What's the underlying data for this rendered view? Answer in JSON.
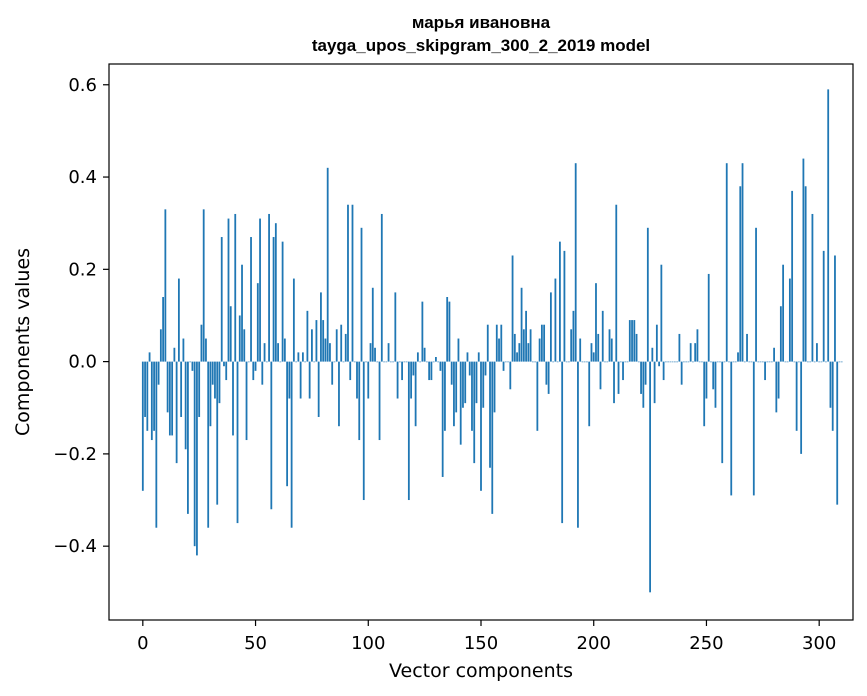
{
  "chart_data": {
    "type": "bar",
    "title_line1": "марья ивановна",
    "title_line2": "tayga_upos_skipgram_300_2_2019 model",
    "xlabel": "Vector components",
    "ylabel": "Components values",
    "xlim": [
      -15,
      315
    ],
    "ylim": [
      -0.56,
      0.645
    ],
    "xticks": [
      0,
      50,
      100,
      150,
      200,
      250,
      300
    ],
    "xtick_labels": [
      "0",
      "50",
      "100",
      "150",
      "200",
      "250",
      "300"
    ],
    "yticks": [
      -0.4,
      -0.2,
      0.0,
      0.2,
      0.4,
      0.6
    ],
    "ytick_labels": [
      "−0.4",
      "−0.2",
      "0.0",
      "0.2",
      "0.4",
      "0.6"
    ],
    "bar_color": "#1f77b4",
    "values": [
      -0.28,
      -0.12,
      -0.15,
      0.02,
      -0.17,
      -0.15,
      -0.36,
      -0.05,
      0.07,
      0.14,
      0.33,
      -0.11,
      -0.16,
      -0.16,
      0.03,
      -0.22,
      0.18,
      -0.12,
      0.05,
      -0.19,
      -0.33,
      0.0,
      -0.02,
      -0.4,
      -0.42,
      -0.12,
      0.08,
      0.33,
      0.05,
      -0.36,
      -0.14,
      -0.05,
      -0.08,
      -0.31,
      -0.09,
      0.27,
      -0.01,
      -0.04,
      0.31,
      0.12,
      -0.16,
      0.32,
      -0.35,
      0.1,
      0.21,
      0.07,
      -0.17,
      0.0,
      0.27,
      -0.04,
      -0.02,
      0.17,
      0.31,
      -0.05,
      0.04,
      0.0,
      0.32,
      -0.32,
      0.27,
      0.3,
      0.04,
      0.0,
      0.26,
      0.05,
      -0.27,
      -0.08,
      -0.36,
      0.18,
      0.0,
      0.02,
      -0.08,
      0.02,
      0.0,
      0.11,
      -0.08,
      0.07,
      0.0,
      0.09,
      -0.12,
      0.15,
      0.09,
      0.05,
      0.42,
      0.04,
      -0.05,
      0.0,
      0.07,
      -0.14,
      0.08,
      0.0,
      0.06,
      0.34,
      -0.04,
      0.34,
      0.0,
      -0.08,
      -0.17,
      0.29,
      -0.3,
      0.0,
      -0.08,
      0.04,
      0.16,
      0.03,
      0.0,
      -0.17,
      0.32,
      0.0,
      0.0,
      0.04,
      0.0,
      0.0,
      0.15,
      -0.08,
      0.0,
      -0.04,
      0.0,
      0.0,
      -0.3,
      -0.08,
      -0.03,
      -0.14,
      0.02,
      0.0,
      0.13,
      0.03,
      0.0,
      -0.04,
      -0.04,
      0.0,
      0.01,
      0.0,
      -0.02,
      -0.25,
      -0.15,
      0.14,
      0.13,
      -0.05,
      -0.14,
      -0.11,
      0.05,
      -0.18,
      -0.1,
      -0.09,
      0.02,
      -0.03,
      -0.15,
      -0.22,
      -0.09,
      0.02,
      -0.28,
      -0.1,
      -0.03,
      0.08,
      -0.23,
      -0.33,
      -0.11,
      0.08,
      0.05,
      0.08,
      -0.02,
      0.0,
      0.0,
      -0.06,
      0.23,
      0.06,
      0.02,
      0.04,
      0.16,
      0.07,
      0.11,
      0.04,
      0.07,
      0.0,
      0.0,
      -0.15,
      0.05,
      0.08,
      0.08,
      -0.05,
      -0.07,
      0.15,
      0.0,
      0.18,
      0.0,
      0.26,
      -0.35,
      0.24,
      0.0,
      0.0,
      0.07,
      0.11,
      0.43,
      -0.36,
      0.05,
      0.0,
      0.0,
      0.0,
      -0.14,
      0.04,
      0.02,
      0.17,
      0.06,
      -0.06,
      0.11,
      0.0,
      0.0,
      0.07,
      0.05,
      -0.09,
      0.34,
      -0.07,
      0.0,
      -0.04,
      0.0,
      0.0,
      0.09,
      0.09,
      0.09,
      0.06,
      0.0,
      -0.07,
      -0.1,
      -0.05,
      0.29,
      -0.5,
      0.03,
      -0.09,
      0.08,
      -0.01,
      0.21,
      -0.04,
      0.0,
      0.0,
      0.0,
      0.0,
      0.0,
      0.0,
      0.06,
      -0.05,
      0.0,
      0.0,
      0.0,
      0.04,
      0.0,
      0.04,
      0.07,
      0.0,
      0.0,
      -0.14,
      -0.08,
      0.19,
      0.0,
      -0.06,
      -0.1,
      0.0,
      0.0,
      -0.22,
      0.0,
      0.43,
      0.0,
      -0.29,
      0.0,
      0.0,
      0.02,
      0.38,
      0.43,
      0.0,
      0.06,
      0.0,
      0.0,
      -0.29,
      0.29,
      0.0,
      0.0,
      0.0,
      -0.04,
      0.0,
      0.0,
      0.0,
      0.03,
      -0.11,
      -0.08,
      0.12,
      0.21,
      0.0,
      0.0,
      0.18,
      0.37,
      0.0,
      -0.15,
      0.0,
      -0.2,
      0.44,
      0.38,
      0.0,
      0.0,
      0.32,
      0.0,
      0.04,
      0.0,
      0.0,
      0.24,
      0.0,
      0.59,
      -0.1,
      -0.15,
      0.23,
      -0.31,
      0.0,
      0.0
    ]
  }
}
